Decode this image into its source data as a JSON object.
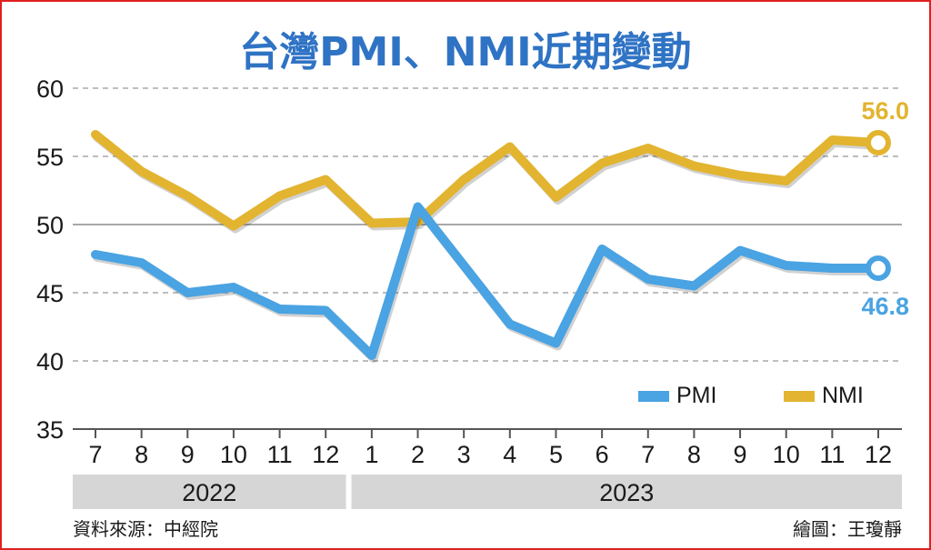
{
  "title": "台灣PMI、NMI近期變動",
  "source": "資料來源：中經院",
  "credit": "繪圖：王瓊靜",
  "colors": {
    "title": "#2f73c4",
    "pmi": "#4aa3e2",
    "nmi": "#e2b430",
    "year_band": "#d6d6d6",
    "grid": "#a8a8a8"
  },
  "chart_data": {
    "type": "line",
    "title": "台灣PMI、NMI近期變動",
    "categories": [
      "7",
      "8",
      "9",
      "10",
      "11",
      "12",
      "1",
      "2",
      "3",
      "4",
      "5",
      "6",
      "7",
      "8",
      "9",
      "10",
      "11",
      "12"
    ],
    "year_groups": [
      {
        "label": "2022",
        "from": 0,
        "to": 5
      },
      {
        "label": "2023",
        "from": 6,
        "to": 17
      }
    ],
    "series": [
      {
        "name": "PMI",
        "color": "#4aa3e2",
        "values": [
          47.8,
          47.2,
          45.0,
          45.4,
          43.8,
          43.7,
          40.4,
          51.3,
          47.0,
          42.7,
          41.3,
          48.2,
          46.0,
          45.5,
          48.1,
          47.0,
          46.8,
          46.8
        ],
        "end_label": "46.8"
      },
      {
        "name": "NMI",
        "color": "#e2b430",
        "values": [
          56.6,
          53.9,
          52.1,
          49.9,
          52.1,
          53.3,
          50.1,
          50.2,
          53.3,
          55.7,
          52.0,
          54.5,
          55.6,
          54.3,
          53.6,
          53.2,
          56.2,
          56.0
        ],
        "end_label": "56.0"
      }
    ],
    "ylim": [
      35,
      60
    ],
    "yticks": [
      "60",
      "55",
      "50",
      "45",
      "40",
      "35"
    ],
    "grid": true,
    "legend_position": "bottom-right"
  }
}
